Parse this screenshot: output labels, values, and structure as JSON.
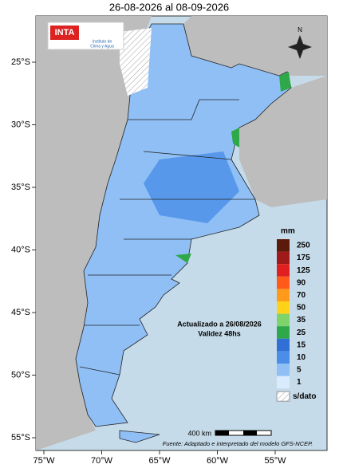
{
  "title": "26-08-2026 al 08-09-2026",
  "logo": {
    "name": "INTA",
    "institute": [
      "Instituto de",
      "Clima y Agua"
    ]
  },
  "north": "N",
  "lat_labels": [
    "25°S",
    "30°S",
    "35°S",
    "40°S",
    "45°S",
    "50°S",
    "55°S"
  ],
  "lon_labels": [
    "75°W",
    "70°W",
    "65°W",
    "60°W",
    "55°W"
  ],
  "legend": {
    "unit": "mm",
    "items": [
      {
        "label": 250,
        "color": "#5c1a0a"
      },
      {
        "label": 175,
        "color": "#a11a1a"
      },
      {
        "label": 125,
        "color": "#e02020"
      },
      {
        "label": 90,
        "color": "#ff5a1a"
      },
      {
        "label": 70,
        "color": "#ff9a1a"
      },
      {
        "label": 50,
        "color": "#ffd21a"
      },
      {
        "label": 35,
        "color": "#7ed36a"
      },
      {
        "label": 25,
        "color": "#2fa84a"
      },
      {
        "label": 15,
        "color": "#2f6fd6"
      },
      {
        "label": 10,
        "color": "#4a8ee8"
      },
      {
        "label": 5,
        "color": "#8fbff5"
      },
      {
        "label": 1,
        "color": "#d8ecfd"
      }
    ],
    "no_data": "s/dato"
  },
  "annotation": [
    "Actualizado a 26/08/2026",
    "Validez 48hs"
  ],
  "scale": "400 km",
  "source": "Fuente: Adaptado e interpretado del modelo GFS-NCEP."
}
